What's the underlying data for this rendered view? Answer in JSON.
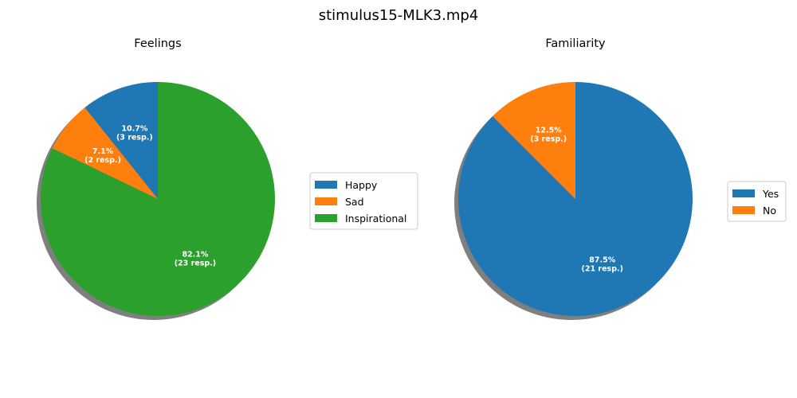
{
  "suptitle": "stimulus15-MLK3.mp4",
  "chart_data": [
    {
      "type": "pie",
      "title": "Feelings",
      "categories": [
        "Happy",
        "Sad",
        "Inspirational"
      ],
      "values": [
        3,
        2,
        23
      ],
      "percent_labels": [
        "10.7%",
        "7.1%",
        "82.1%"
      ],
      "response_labels": [
        "(3 resp.)",
        "(2 resp.)",
        "(23 resp.)"
      ],
      "colors": [
        "#1f77b4",
        "#ff7f0e",
        "#2ca02c"
      ],
      "start_angle": 90,
      "direction": "counterclockwise",
      "shadow": true,
      "legend": "outside-right"
    },
    {
      "type": "pie",
      "title": "Familiarity",
      "categories": [
        "Yes",
        "No"
      ],
      "values": [
        21,
        3
      ],
      "percent_labels": [
        "87.5%",
        "12.5%"
      ],
      "response_labels": [
        "(21 resp.)",
        "(3 resp.)"
      ],
      "colors": [
        "#1f77b4",
        "#ff7f0e"
      ],
      "start_angle": 90,
      "direction": "clockwise",
      "shadow": true,
      "legend": "outside-right"
    }
  ]
}
